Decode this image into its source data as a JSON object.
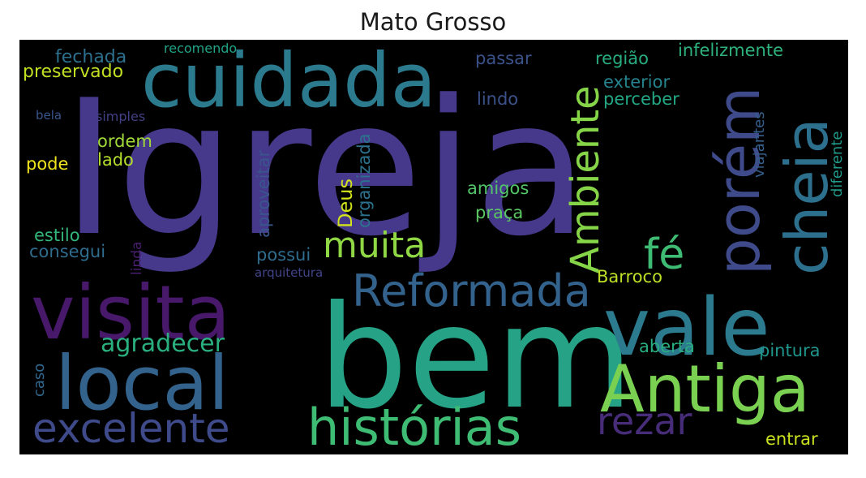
{
  "title": "Mato Grosso",
  "words": [
    {
      "text": "Igreja",
      "color": "#46398b"
    },
    {
      "text": "bem",
      "color": "#26a386"
    },
    {
      "text": "cuidada",
      "color": "#2b7a8e"
    },
    {
      "text": "visita",
      "color": "#48186a"
    },
    {
      "text": "local",
      "color": "#33638d"
    },
    {
      "text": "vale",
      "color": "#2b7a8e"
    },
    {
      "text": "Antiga",
      "color": "#7ad151"
    },
    {
      "text": "histórias",
      "color": "#3fbc73"
    },
    {
      "text": "excelente",
      "color": "#3e4a89"
    },
    {
      "text": "cheia",
      "color": "#2d708e"
    },
    {
      "text": "porém",
      "color": "#3e4a89"
    },
    {
      "text": "Ambiente",
      "color": "#86d549"
    },
    {
      "text": "Reformada",
      "color": "#33638d"
    },
    {
      "text": "muita",
      "color": "#8fd744"
    },
    {
      "text": "fé",
      "color": "#3fbc73"
    },
    {
      "text": "rezar",
      "color": "#472c7a"
    },
    {
      "text": "agradecer",
      "color": "#2ab07f"
    },
    {
      "text": "fechada",
      "color": "#2d708e"
    },
    {
      "text": "preservado",
      "color": "#c2df23"
    },
    {
      "text": "recomendo",
      "color": "#20a386"
    },
    {
      "text": "passar",
      "color": "#3b528b"
    },
    {
      "text": "região",
      "color": "#27ad81"
    },
    {
      "text": "infelizmente",
      "color": "#2db27d"
    },
    {
      "text": "exterior",
      "color": "#25848e"
    },
    {
      "text": "perceber",
      "color": "#22a884"
    },
    {
      "text": "lindo",
      "color": "#3b528b"
    },
    {
      "text": "bela",
      "color": "#39568c"
    },
    {
      "text": "simples",
      "color": "#424086"
    },
    {
      "text": "ordem",
      "color": "#a0da39"
    },
    {
      "text": "lado",
      "color": "#b5de2b"
    },
    {
      "text": "pode",
      "color": "#f1e51d"
    },
    {
      "text": "Deus",
      "color": "#d2e21b"
    },
    {
      "text": "organizada",
      "color": "#2c728e"
    },
    {
      "text": "aproveitar",
      "color": "#39558c"
    },
    {
      "text": "viajantes",
      "color": "#355f8d"
    },
    {
      "text": "diferente",
      "color": "#1f9a8a"
    },
    {
      "text": "amigos",
      "color": "#52c569"
    },
    {
      "text": "praça",
      "color": "#5cc863"
    },
    {
      "text": "estilo",
      "color": "#32b67a"
    },
    {
      "text": "consegui",
      "color": "#2f6c8e"
    },
    {
      "text": "linda",
      "color": "#481f70"
    },
    {
      "text": "possui",
      "color": "#2f6c8e"
    },
    {
      "text": "arquitetura",
      "color": "#414487"
    },
    {
      "text": "Barroco",
      "color": "#bddf26"
    },
    {
      "text": "aberta",
      "color": "#29af7f"
    },
    {
      "text": "pintura",
      "color": "#1f958b"
    },
    {
      "text": "caso",
      "color": "#31688e"
    },
    {
      "text": "entrar",
      "color": "#cae11f"
    }
  ]
}
